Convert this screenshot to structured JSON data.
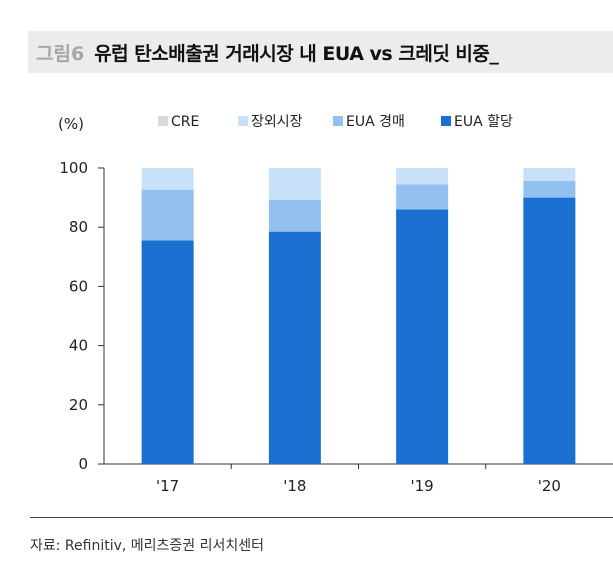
{
  "header": {
    "figure_number": "그림6",
    "title": "유럽 탄소배출권 거래시장 내 EUA vs 크레딧 비중_"
  },
  "chart_data": {
    "type": "bar",
    "stacked": true,
    "unit_label": "(%)",
    "categories": [
      "'17",
      "'18",
      "'19",
      "'20"
    ],
    "ylim": [
      0,
      100
    ],
    "yticks": [
      0,
      20,
      40,
      60,
      80,
      100
    ],
    "legend_position": "top",
    "series": [
      {
        "name": "EUA 할당",
        "color": "#1b6fd1",
        "values": [
          75.5,
          78.5,
          86,
          90
        ]
      },
      {
        "name": "EUA 경매",
        "color": "#92c1ef",
        "values": [
          17.2,
          10.8,
          8.5,
          5.7
        ]
      },
      {
        "name": "장외시장",
        "color": "#c9e1f8",
        "values": [
          7.3,
          10.7,
          5.5,
          4.3
        ]
      },
      {
        "name": "CRE",
        "color": "#d9d9d9",
        "values": [
          0,
          0,
          0,
          0
        ]
      }
    ],
    "legend_order": [
      "CRE",
      "장외시장",
      "EUA 경매",
      "EUA 할당"
    ]
  },
  "footer": {
    "source": "자료: Refinitiv, 메리츠증권 리서치센터"
  }
}
